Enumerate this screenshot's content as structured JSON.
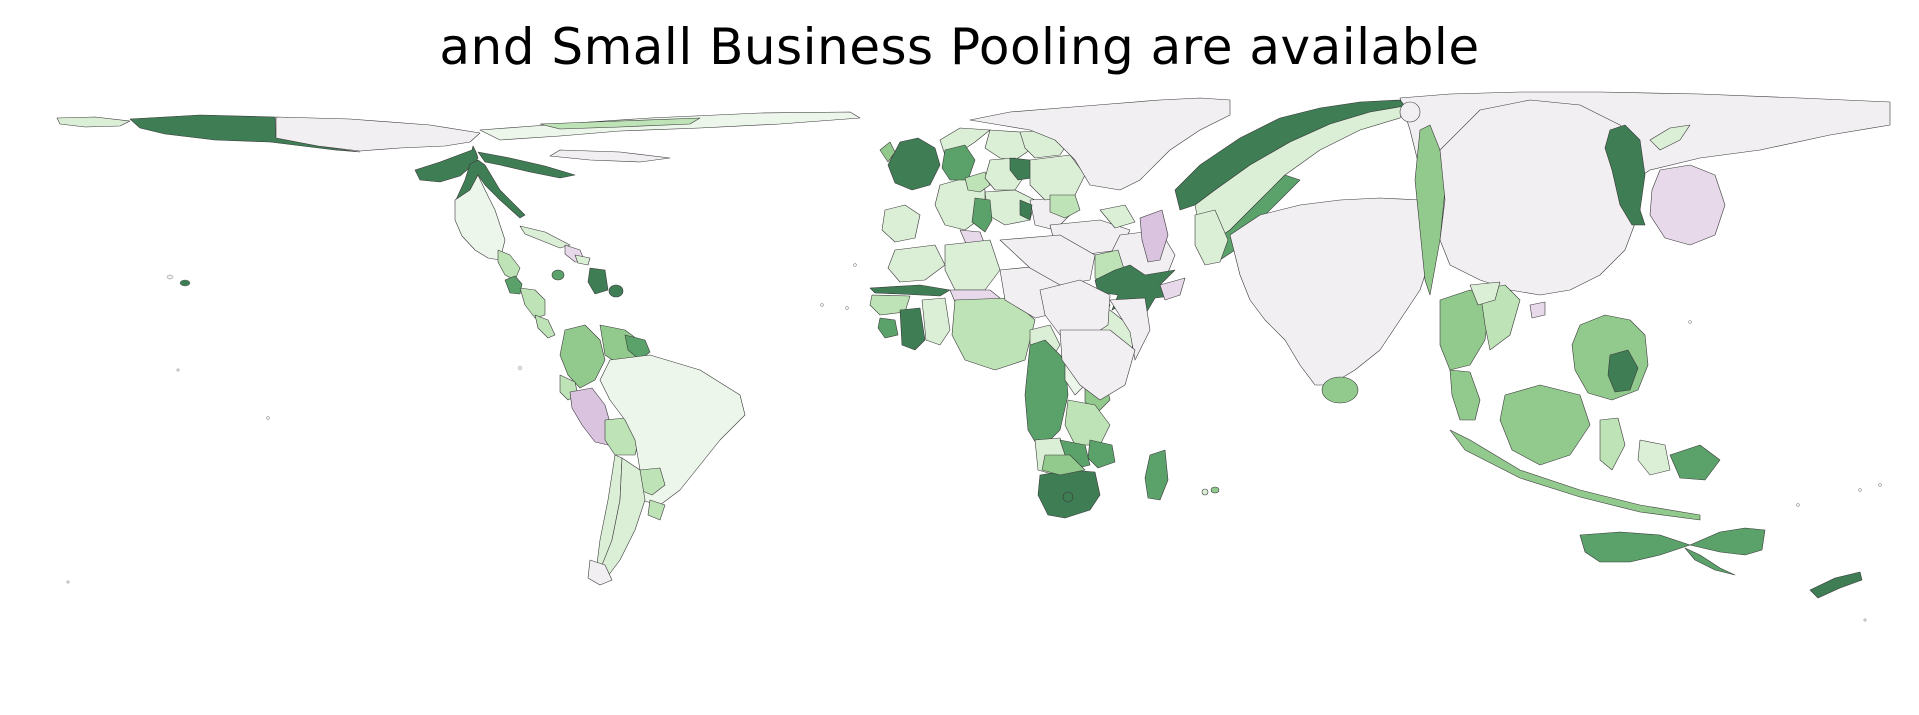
{
  "title": "and Small Business Pooling are available",
  "palette": {
    "c0": "#f2eff2",
    "c1": "#ecf6ea",
    "c2": "#dbefd6",
    "c3": "#bde3b6",
    "c4": "#92c98d",
    "c5": "#5aa26a",
    "c6": "#3f7d55",
    "p1": "#e7d9ea",
    "p2": "#d9c3df",
    "stroke": "#3a3a3a"
  }
}
